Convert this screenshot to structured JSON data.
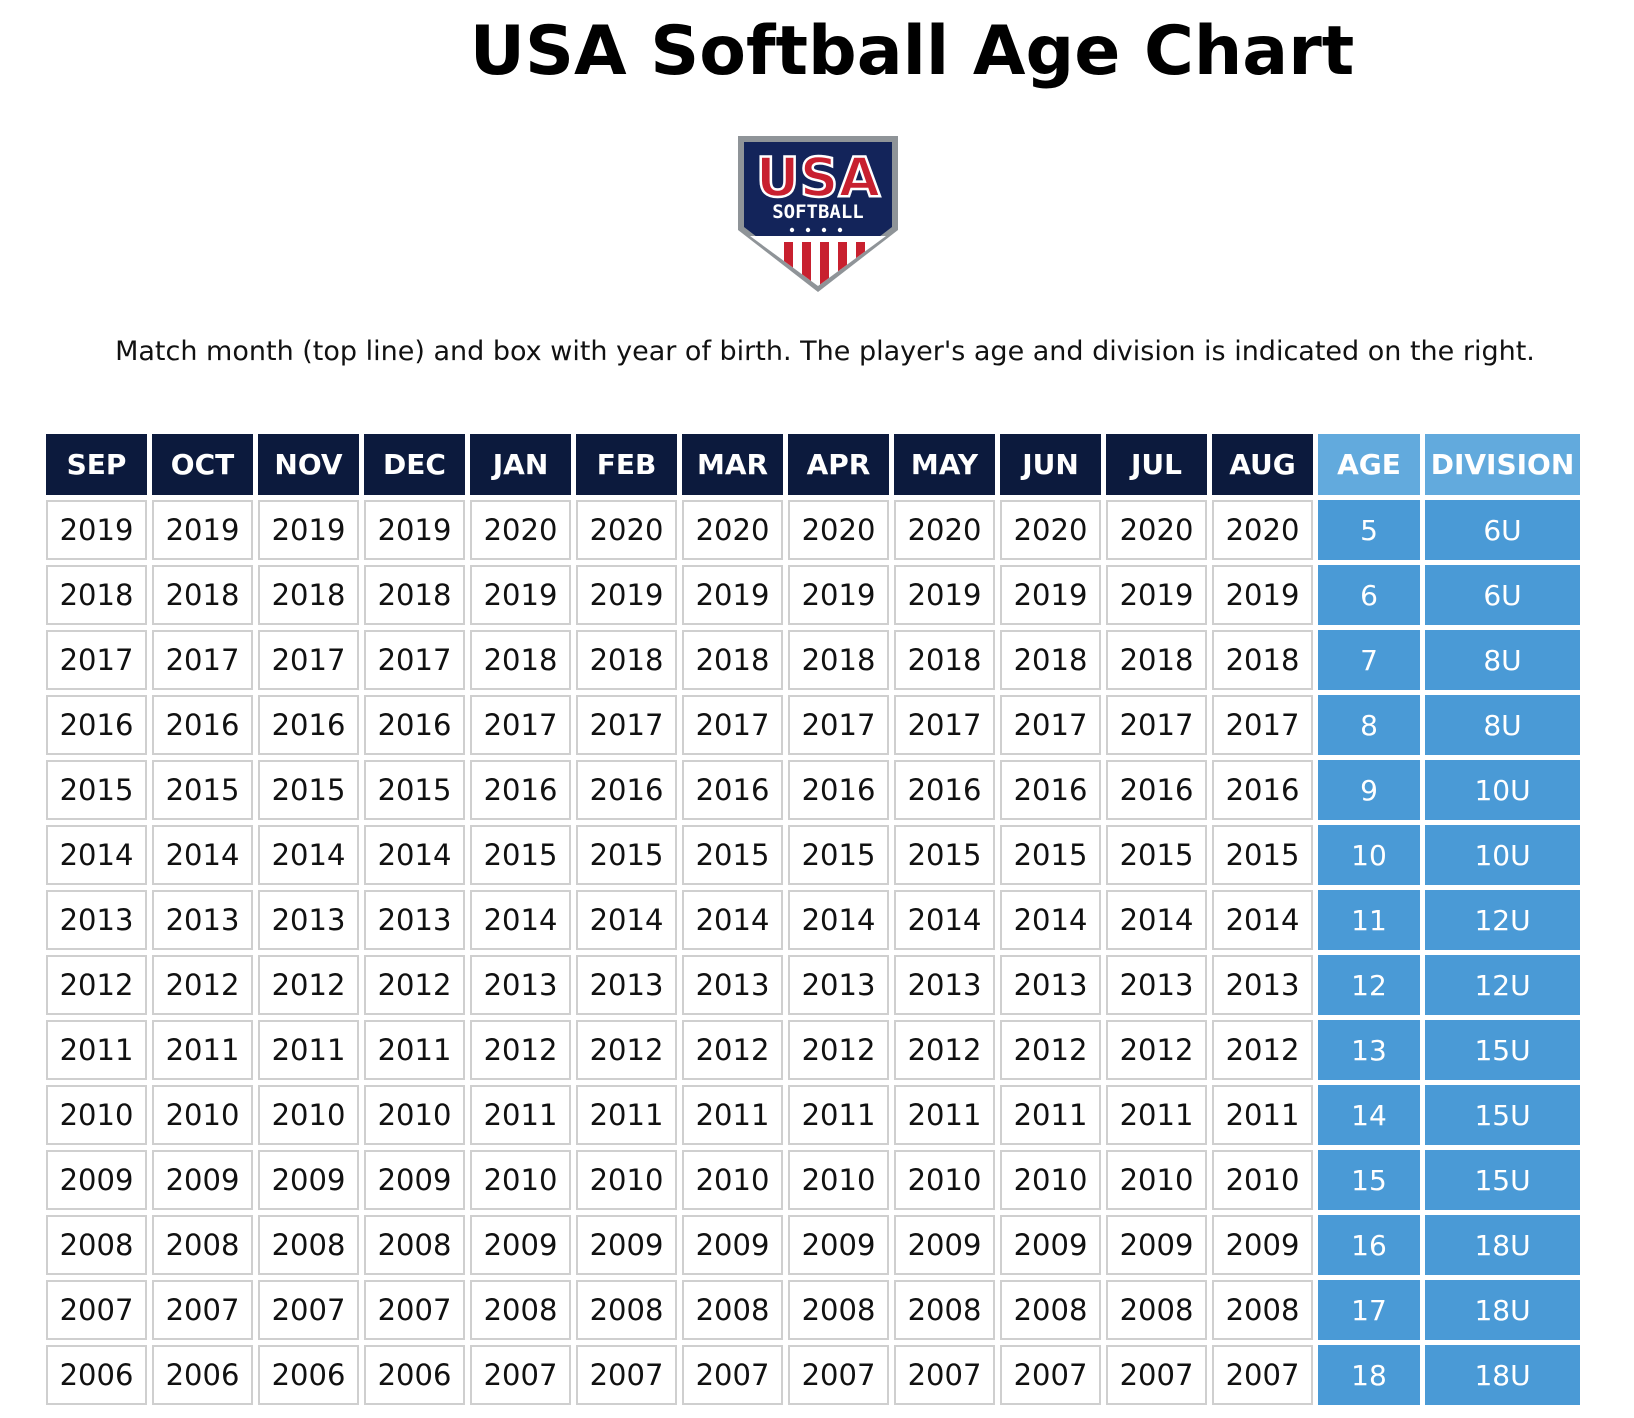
{
  "title": "USA Softball Age Chart",
  "logo": {
    "top_text": "USA",
    "bottom_text": "SOFTBALL"
  },
  "caption": "Match month (top line) and box with year of birth. The player's age and division is indicated on the right.",
  "table": {
    "headers": [
      "SEP",
      "OCT",
      "NOV",
      "DEC",
      "JAN",
      "FEB",
      "MAR",
      "APR",
      "MAY",
      "JUN",
      "JUL",
      "AUG",
      "AGE",
      "DIVISION"
    ],
    "rows": [
      {
        "years": [
          "2019",
          "2019",
          "2019",
          "2019",
          "2020",
          "2020",
          "2020",
          "2020",
          "2020",
          "2020",
          "2020",
          "2020"
        ],
        "age": "5",
        "division": "6U"
      },
      {
        "years": [
          "2018",
          "2018",
          "2018",
          "2018",
          "2019",
          "2019",
          "2019",
          "2019",
          "2019",
          "2019",
          "2019",
          "2019"
        ],
        "age": "6",
        "division": "6U"
      },
      {
        "years": [
          "2017",
          "2017",
          "2017",
          "2017",
          "2018",
          "2018",
          "2018",
          "2018",
          "2018",
          "2018",
          "2018",
          "2018"
        ],
        "age": "7",
        "division": "8U"
      },
      {
        "years": [
          "2016",
          "2016",
          "2016",
          "2016",
          "2017",
          "2017",
          "2017",
          "2017",
          "2017",
          "2017",
          "2017",
          "2017"
        ],
        "age": "8",
        "division": "8U"
      },
      {
        "years": [
          "2015",
          "2015",
          "2015",
          "2015",
          "2016",
          "2016",
          "2016",
          "2016",
          "2016",
          "2016",
          "2016",
          "2016"
        ],
        "age": "9",
        "division": "10U"
      },
      {
        "years": [
          "2014",
          "2014",
          "2014",
          "2014",
          "2015",
          "2015",
          "2015",
          "2015",
          "2015",
          "2015",
          "2015",
          "2015"
        ],
        "age": "10",
        "division": "10U"
      },
      {
        "years": [
          "2013",
          "2013",
          "2013",
          "2013",
          "2014",
          "2014",
          "2014",
          "2014",
          "2014",
          "2014",
          "2014",
          "2014"
        ],
        "age": "11",
        "division": "12U"
      },
      {
        "years": [
          "2012",
          "2012",
          "2012",
          "2012",
          "2013",
          "2013",
          "2013",
          "2013",
          "2013",
          "2013",
          "2013",
          "2013"
        ],
        "age": "12",
        "division": "12U"
      },
      {
        "years": [
          "2011",
          "2011",
          "2011",
          "2011",
          "2012",
          "2012",
          "2012",
          "2012",
          "2012",
          "2012",
          "2012",
          "2012"
        ],
        "age": "13",
        "division": "15U"
      },
      {
        "years": [
          "2010",
          "2010",
          "2010",
          "2010",
          "2011",
          "2011",
          "2011",
          "2011",
          "2011",
          "2011",
          "2011",
          "2011"
        ],
        "age": "14",
        "division": "15U"
      },
      {
        "years": [
          "2009",
          "2009",
          "2009",
          "2009",
          "2010",
          "2010",
          "2010",
          "2010",
          "2010",
          "2010",
          "2010",
          "2010"
        ],
        "age": "15",
        "division": "15U"
      },
      {
        "years": [
          "2008",
          "2008",
          "2008",
          "2008",
          "2009",
          "2009",
          "2009",
          "2009",
          "2009",
          "2009",
          "2009",
          "2009"
        ],
        "age": "16",
        "division": "18U"
      },
      {
        "years": [
          "2007",
          "2007",
          "2007",
          "2007",
          "2008",
          "2008",
          "2008",
          "2008",
          "2008",
          "2008",
          "2008",
          "2008"
        ],
        "age": "17",
        "division": "18U"
      },
      {
        "years": [
          "2006",
          "2006",
          "2006",
          "2006",
          "2007",
          "2007",
          "2007",
          "2007",
          "2007",
          "2007",
          "2007",
          "2007"
        ],
        "age": "18",
        "division": "18U"
      }
    ]
  },
  "colors": {
    "navy": "#0c1a3d",
    "header_blue": "#62aadd",
    "cell_blue": "#4a9ad6",
    "red": "#c8202f"
  }
}
